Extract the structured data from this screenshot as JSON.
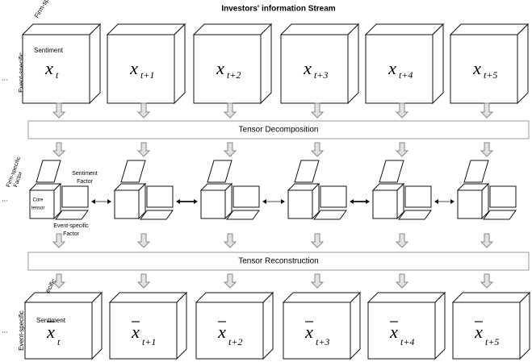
{
  "title": "Investors' information Stream",
  "continuation": "...",
  "input_axes": {
    "firm": "Firm-specific",
    "event": "Event-specific",
    "sentiment": "Sentiment"
  },
  "input_tensors": [
    {
      "base": "x",
      "sub": "t"
    },
    {
      "base": "x",
      "sub": "t+1"
    },
    {
      "base": "x",
      "sub": "t+2"
    },
    {
      "base": "x",
      "sub": "t+3"
    },
    {
      "base": "x",
      "sub": "t+4"
    },
    {
      "base": "x",
      "sub": "t+5"
    }
  ],
  "decomposition": "Tensor Decomposition",
  "factor_labels": {
    "firm": [
      "Firm-specific",
      "Factor"
    ],
    "sentiment": [
      "Sentiment",
      "Factor"
    ],
    "core": [
      "Core",
      "tensor"
    ],
    "event": [
      "Event-specific",
      "Factor"
    ]
  },
  "reconstruction": "Tensor Reconstruction",
  "output_axes": {
    "firm": "Firm-specific",
    "event": "Event-specific",
    "sentiment": "Sentiment"
  },
  "output_tensors": [
    {
      "base": "x",
      "sub": "t"
    },
    {
      "base": "x",
      "sub": "t+1"
    },
    {
      "base": "x",
      "sub": "t+2"
    },
    {
      "base": "x",
      "sub": "t+3"
    },
    {
      "base": "x",
      "sub": "t+4"
    },
    {
      "base": "x",
      "sub": "t+5"
    }
  ]
}
